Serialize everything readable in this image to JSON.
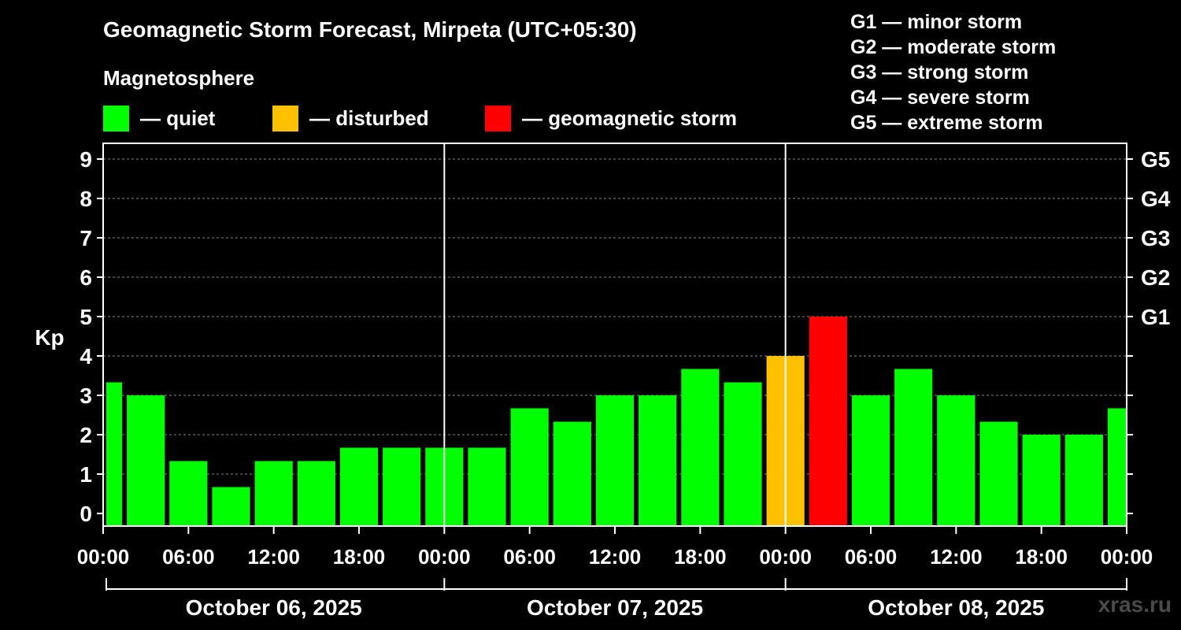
{
  "title": "Geomagnetic Storm Forecast, Mirpeta (UTC+05:30)",
  "subtitle": "Magnetosphere",
  "legend": [
    {
      "label": "— quiet",
      "color": "#00ff00"
    },
    {
      "label": "— disturbed",
      "color": "#ffc000"
    },
    {
      "label": "— geomagnetic storm",
      "color": "#ff0000"
    }
  ],
  "g_scale": [
    "G1 — minor storm",
    "G2 — moderate storm",
    "G3 — strong storm",
    "G4 — severe storm",
    "G5 — extreme storm"
  ],
  "watermark": "xras.ru",
  "chart_data": {
    "type": "bar",
    "ylabel": "Kp",
    "ylim": [
      0,
      9
    ],
    "yticks": [
      "0",
      "1",
      "2",
      "3",
      "4",
      "5",
      "6",
      "7",
      "8",
      "9"
    ],
    "right_axis_labels": [
      {
        "kp": 5,
        "label": "G1"
      },
      {
        "kp": 6,
        "label": "G2"
      },
      {
        "kp": 7,
        "label": "G3"
      },
      {
        "kp": 8,
        "label": "G4"
      },
      {
        "kp": 9,
        "label": "G5"
      }
    ],
    "x_hours": [
      0,
      72
    ],
    "x_tick_labels": [
      "00:00",
      "06:00",
      "12:00",
      "18:00",
      "00:00",
      "06:00",
      "12:00",
      "18:00",
      "00:00",
      "06:00",
      "12:00",
      "18:00",
      "00:00"
    ],
    "dates": [
      "October 06, 2025",
      "October 07, 2025",
      "October 08, 2025"
    ],
    "day_separators_hours": [
      24,
      48
    ],
    "bars": [
      {
        "start": 0,
        "end": 1.5,
        "kp": 3.33,
        "level": "quiet"
      },
      {
        "start": 1.5,
        "end": 4.5,
        "kp": 3.0,
        "level": "quiet"
      },
      {
        "start": 4.5,
        "end": 7.5,
        "kp": 1.33,
        "level": "quiet"
      },
      {
        "start": 7.5,
        "end": 10.5,
        "kp": 0.67,
        "level": "quiet"
      },
      {
        "start": 10.5,
        "end": 13.5,
        "kp": 1.33,
        "level": "quiet"
      },
      {
        "start": 13.5,
        "end": 16.5,
        "kp": 1.33,
        "level": "quiet"
      },
      {
        "start": 16.5,
        "end": 19.5,
        "kp": 1.67,
        "level": "quiet"
      },
      {
        "start": 19.5,
        "end": 22.5,
        "kp": 1.67,
        "level": "quiet"
      },
      {
        "start": 22.5,
        "end": 25.5,
        "kp": 1.67,
        "level": "quiet"
      },
      {
        "start": 25.5,
        "end": 28.5,
        "kp": 1.67,
        "level": "quiet"
      },
      {
        "start": 28.5,
        "end": 31.5,
        "kp": 2.67,
        "level": "quiet"
      },
      {
        "start": 31.5,
        "end": 34.5,
        "kp": 2.33,
        "level": "quiet"
      },
      {
        "start": 34.5,
        "end": 37.5,
        "kp": 3.0,
        "level": "quiet"
      },
      {
        "start": 37.5,
        "end": 40.5,
        "kp": 3.0,
        "level": "quiet"
      },
      {
        "start": 40.5,
        "end": 43.5,
        "kp": 3.67,
        "level": "quiet"
      },
      {
        "start": 43.5,
        "end": 46.5,
        "kp": 3.33,
        "level": "quiet"
      },
      {
        "start": 46.5,
        "end": 49.5,
        "kp": 4.0,
        "level": "disturbed"
      },
      {
        "start": 49.5,
        "end": 52.5,
        "kp": 5.0,
        "level": "storm"
      },
      {
        "start": 52.5,
        "end": 55.5,
        "kp": 3.0,
        "level": "quiet"
      },
      {
        "start": 55.5,
        "end": 58.5,
        "kp": 3.67,
        "level": "quiet"
      },
      {
        "start": 58.5,
        "end": 61.5,
        "kp": 3.0,
        "level": "quiet"
      },
      {
        "start": 61.5,
        "end": 64.5,
        "kp": 2.33,
        "level": "quiet"
      },
      {
        "start": 64.5,
        "end": 67.5,
        "kp": 2.0,
        "level": "quiet"
      },
      {
        "start": 67.5,
        "end": 70.5,
        "kp": 2.0,
        "level": "quiet"
      },
      {
        "start": 70.5,
        "end": 72,
        "kp": 2.67,
        "level": "quiet"
      }
    ],
    "level_colors": {
      "quiet": "#00ff00",
      "disturbed": "#ffc000",
      "storm": "#ff0000"
    }
  }
}
